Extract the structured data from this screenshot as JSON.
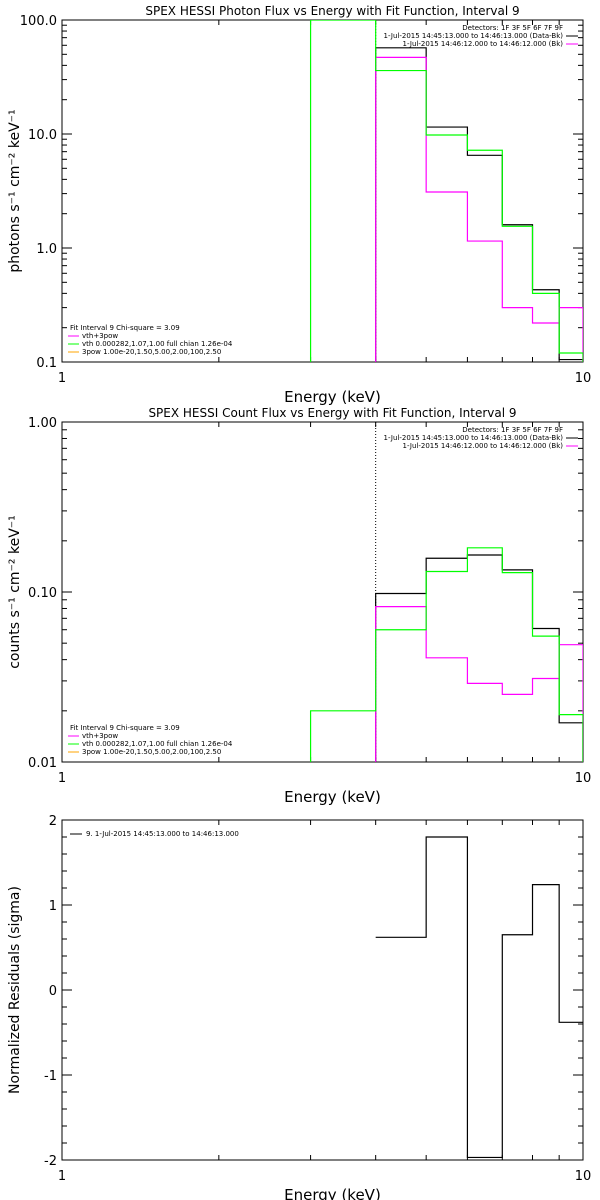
{
  "chart_data": [
    {
      "type": "line",
      "step": true,
      "title": "SPEX HESSI Photon Flux vs Energy with Fit Function, Interval 9",
      "xlabel": "Energy (keV)",
      "ylabel": "photons s⁻¹ cm⁻² keV⁻¹",
      "xscale": "log",
      "yscale": "log",
      "xlim": [
        1,
        10
      ],
      "ylim": [
        0.1,
        100
      ],
      "x_tick_labels": [
        "1",
        "10"
      ],
      "y_tick_labels": [
        "0.1",
        "1.0",
        "10.0",
        "100.0"
      ],
      "legend_topright": [
        "Detectors: 1F 3F 5F 6F 7F 9F",
        "1-Jul-2015 14:45:13.000 to 14:46:13.000 (Data-Bk)",
        "1-Jul-2015 14:46:12.000 to 14:46:12.000 (Bk)"
      ],
      "legend_bottomleft": [
        "Fit Interval 9   Chi-square = 3.09",
        "vth+3pow",
        "vth 0.000282,1.07,1.00  full chian 1.26e-04",
        "3pow 1.00e-20,1.50,5.00,2.00,100,2.50"
      ],
      "vline_x": 4.0,
      "series": [
        {
          "color": "#000000",
          "edges": [
            4,
            5,
            6,
            7,
            8,
            9,
            10
          ],
          "values": [
            57,
            11.5,
            6.5,
            1.6,
            0.43,
            0.105
          ]
        },
        {
          "color": "#ff00ff",
          "edges": [
            4,
            5,
            6,
            7,
            8,
            9,
            10
          ],
          "values": [
            47,
            3.1,
            1.15,
            0.3,
            0.22,
            0.3
          ]
        },
        {
          "color": "#00ff00",
          "edges": [
            3,
            4,
            5,
            6,
            7,
            8,
            9,
            10
          ],
          "values": [
            100,
            36,
            9.8,
            7.2,
            1.55,
            0.4,
            0.12
          ]
        }
      ]
    },
    {
      "type": "line",
      "step": true,
      "title": "SPEX HESSI Count Flux vs Energy with Fit Function, Interval 9",
      "xlabel": "Energy (keV)",
      "ylabel": "counts s⁻¹ cm⁻² keV⁻¹",
      "xscale": "log",
      "yscale": "log",
      "xlim": [
        1,
        10
      ],
      "ylim": [
        0.01,
        1
      ],
      "x_tick_labels": [
        "1",
        "10"
      ],
      "y_tick_labels": [
        "0.01",
        "0.10",
        "1.00"
      ],
      "legend_topright": [
        "Detectors: 1F 3F 5F 6F 7F 9F",
        "1-Jul-2015 14:45:13.000 to 14:46:13.000 (Data-Bk)",
        "1-Jul-2015 14:46:12.000 to 14:46:12.000 (Bk)"
      ],
      "legend_bottomleft": [
        "Fit Interval 9   Chi-square = 3.09",
        "vth+3pow",
        "vth 0.000282,1.07,1.00  full chian 1.26e-04",
        "3pow 1.00e-20,1.50,5.00,2.00,100,2.50"
      ],
      "vline_x": 4.0,
      "series": [
        {
          "color": "#000000",
          "edges": [
            4,
            5,
            6,
            7,
            8,
            9,
            10
          ],
          "values": [
            0.098,
            0.158,
            0.165,
            0.135,
            0.061,
            0.017
          ]
        },
        {
          "color": "#ff00ff",
          "edges": [
            4,
            5,
            6,
            7,
            8,
            9,
            10
          ],
          "values": [
            0.082,
            0.041,
            0.029,
            0.025,
            0.031,
            0.049
          ]
        },
        {
          "color": "#00ff00",
          "edges": [
            3,
            4,
            5,
            6,
            7,
            8,
            9,
            10
          ],
          "values": [
            0.02,
            0.06,
            0.132,
            0.182,
            0.13,
            0.055,
            0.019
          ]
        }
      ]
    },
    {
      "type": "line",
      "step": true,
      "title": "",
      "xlabel": "Energy (keV)",
      "ylabel": "Normalized Residuals (sigma)",
      "xscale": "log",
      "yscale": "linear",
      "xlim": [
        1,
        10
      ],
      "ylim": [
        -2,
        2
      ],
      "x_tick_labels": [
        "1",
        "10"
      ],
      "y_tick_labels": [
        "-2",
        "-1",
        "0",
        "1",
        "2"
      ],
      "legend_topleft": [
        "9.  1-Jul-2015 14:45:13.000 to 14:46:13.000"
      ],
      "series": [
        {
          "color": "#000000",
          "edges": [
            4,
            5,
            6,
            7,
            8,
            9,
            10
          ],
          "values": [
            0.62,
            1.8,
            -1.97,
            0.65,
            1.24,
            -0.38
          ]
        }
      ]
    }
  ]
}
